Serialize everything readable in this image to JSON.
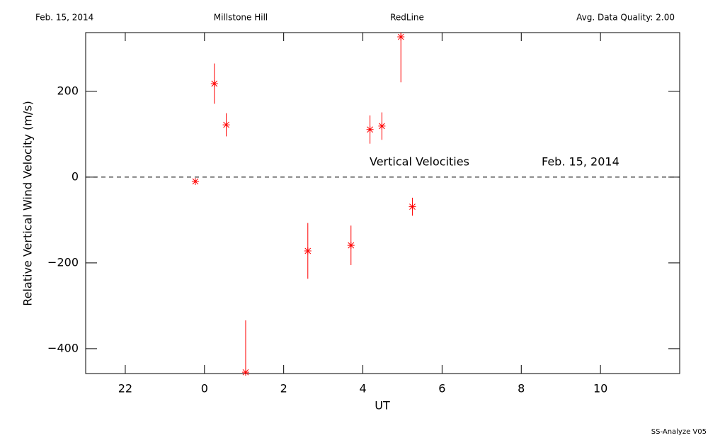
{
  "header": {
    "date": "Feb. 15, 2014",
    "site": "Millstone Hill",
    "line": "RedLine",
    "quality": "Avg. Data Quality: 2.00"
  },
  "chart_data": {
    "type": "scatter",
    "ylabel": "Relative Vertical Wind Velocity (m/s)",
    "xlabel": "UT",
    "annotations": [
      "Vertical Velocities",
      "Feb. 15, 2014"
    ],
    "x": [
      -0.23,
      0.25,
      0.55,
      1.04,
      2.61,
      3.7,
      4.18,
      4.48,
      4.96,
      5.25
    ],
    "values": [
      -10,
      218,
      122,
      -455,
      -172,
      -159,
      111,
      119,
      327,
      -69
    ],
    "errors": [
      3,
      47,
      27,
      121,
      65,
      46,
      33,
      32,
      106,
      21
    ],
    "color": "#ff0000",
    "xlim": [
      -3,
      12
    ],
    "xticks": [
      {
        "value": -2,
        "label": "22"
      },
      0,
      2,
      4,
      6,
      8,
      10
    ],
    "ylim": [
      -458,
      337
    ],
    "yticks": [
      {
        "value": -400,
        "label": "−400"
      },
      {
        "value": -200,
        "label": "−200"
      },
      0,
      200
    ],
    "zero_line": true
  },
  "footer": "SS-Analyze V05"
}
